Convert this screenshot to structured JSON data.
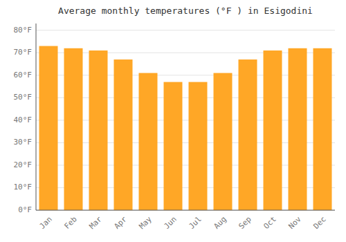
{
  "chart_data": {
    "type": "bar",
    "title": "Average monthly temperatures (°F ) in Esigodini",
    "categories": [
      "Jan",
      "Feb",
      "Mar",
      "Apr",
      "May",
      "Jun",
      "Jul",
      "Aug",
      "Sep",
      "Oct",
      "Nov",
      "Dec"
    ],
    "values": [
      73,
      72,
      71,
      67,
      61,
      57,
      57,
      61,
      67,
      71,
      72,
      72
    ],
    "color": "#FFA726",
    "ylim": [
      0,
      83
    ],
    "yticks": [
      {
        "value": 0,
        "label": "0°F"
      },
      {
        "value": 10,
        "label": "10°F"
      },
      {
        "value": 20,
        "label": "20°F"
      },
      {
        "value": 30,
        "label": "30°F"
      },
      {
        "value": 40,
        "label": "40°F"
      },
      {
        "value": 50,
        "label": "50°F"
      },
      {
        "value": 60,
        "label": "60°F"
      },
      {
        "value": 70,
        "label": "70°F"
      },
      {
        "value": 80,
        "label": "80°F"
      }
    ],
    "grid": true
  }
}
